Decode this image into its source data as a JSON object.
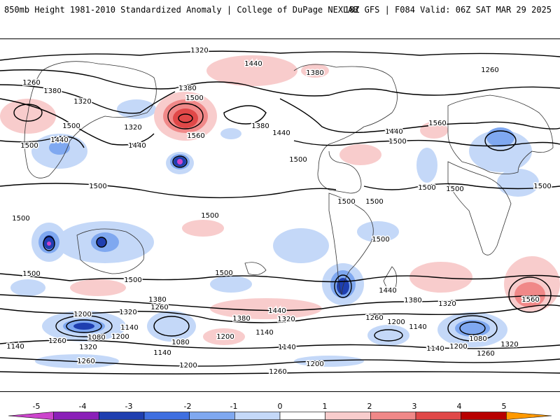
{
  "header": {
    "left_title": "850mb Height 1981-2010 Standardized Anomaly | College of DuPage NEXLAB",
    "right_title": "18Z GFS | F084 Valid: 06Z SAT MAR 29 2025"
  },
  "map": {
    "contour_labels": {
      "n1320": "1320",
      "n1440a": "1440",
      "n1380a": "1380",
      "n1260a": "1260",
      "n1260b": "1260",
      "n1380b": "1380",
      "n1320b": "1320",
      "n1500a": "1500",
      "n1320c": "1320",
      "n1440b": "1440",
      "n1500b": "1500",
      "n1440c": "1440",
      "n1380c": "1380",
      "n1500c": "1500",
      "n1560a": "1560",
      "n1380d": "1380",
      "n1440d": "1440",
      "n1500d": "1500",
      "n1560b": "1560",
      "n1440e": "1440",
      "n1500e": "1500",
      "n1500f": "1500",
      "n1500g": "1500",
      "n1500h": "1500",
      "n1500i": "1500",
      "n1500j": "1500",
      "n1500k": "1500",
      "n1500l": "1500",
      "n1500m": "1500",
      "n1500n": "1500",
      "n1500o": "1500",
      "n1380e": "1380",
      "n1320d": "1320",
      "n1260c": "1260",
      "n1200a": "1200",
      "n1140a": "1140",
      "n1080a": "1080",
      "n1200b": "1200",
      "n1260d": "1260",
      "n1320e": "1320",
      "n1140b": "1140",
      "n1080b": "1080",
      "n1140c": "1140",
      "n1200c": "1200",
      "n1260e": "1260",
      "n1380f": "1380",
      "n1320f": "1320",
      "n1440f": "1440",
      "n1200d": "1200",
      "n1140d": "1140",
      "n1140e": "1140",
      "n1200e": "1200",
      "n1260f": "1260",
      "n1440g": "1440",
      "n1380g": "1380",
      "n1320g": "1320",
      "n1260g": "1260",
      "n1200f": "1200",
      "n1140f": "1140",
      "n1140g": "1140",
      "n1080c": "1080",
      "n1200g": "1200",
      "n1320h": "1320",
      "n1260h": "1260",
      "n1560c": "1560",
      "n1500p": "1500",
      "n1500q": "1500"
    }
  },
  "colorbar": {
    "ticks": [
      "-5",
      "-4",
      "-3",
      "-2",
      "-1",
      "0",
      "1",
      "2",
      "3",
      "4",
      "5"
    ],
    "colors": [
      "#cc44cc",
      "#8a1fb8",
      "#1f3fb0",
      "#3f6fe0",
      "#7fa8f0",
      "#c4d8f8",
      "#ffffff",
      "#f8cccc",
      "#f08888",
      "#e04848",
      "#b80000",
      "#ff9900"
    ]
  }
}
